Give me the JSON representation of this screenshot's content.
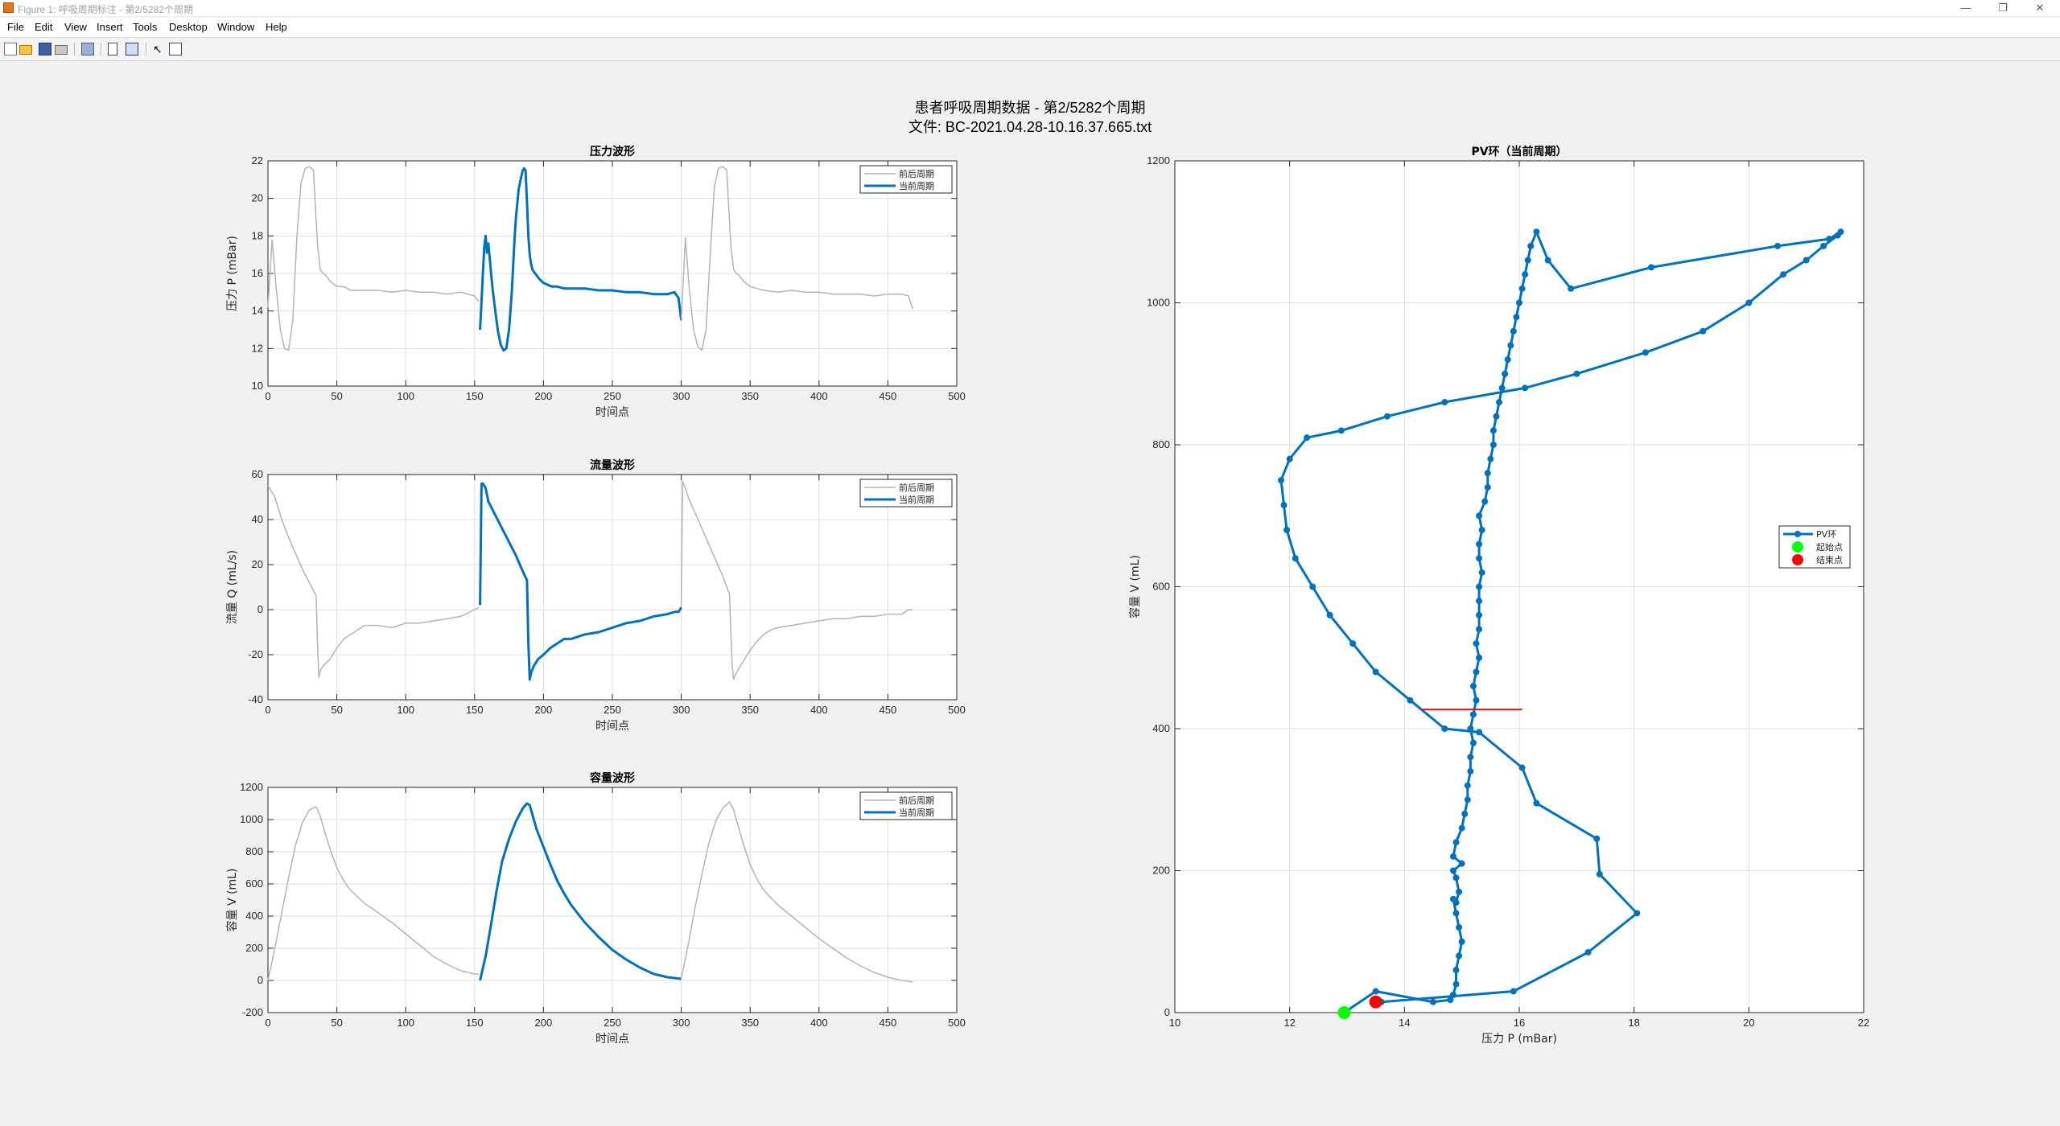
{
  "window": {
    "title": "Figure 1: 呼吸周期标注 - 第2/5282个周期",
    "minimize": "—",
    "restore": "❐",
    "close": "✕"
  },
  "menu": [
    "File",
    "Edit",
    "View",
    "Insert",
    "Tools",
    "Desktop",
    "Window",
    "Help"
  ],
  "toolbar": {
    "icons": [
      "new-figure-icon",
      "open-file-icon",
      "save-icon",
      "print-icon",
      "print-preview-icon",
      "link-plot-icon",
      "property-editor-icon",
      "pointer-icon",
      "plot-browser-icon"
    ]
  },
  "figure": {
    "suptitle_line1": "患者呼吸周期数据 - 第2/5282个周期",
    "suptitle_line2": "文件: BC-2021.04.28-10.16.37.665.txt"
  },
  "colors": {
    "current": "#0072bd",
    "adjacent": "#b3b3b3",
    "crossline": "#e3130a",
    "start_marker": "#00ff00",
    "end_marker": "#ff0000"
  },
  "legend_small": [
    "前后周期",
    "当前周期"
  ],
  "legend_pv": [
    "PV环",
    "起始点",
    "结束点"
  ],
  "chart_data": [
    {
      "type": "line",
      "title": "压力波形",
      "xlabel": "时间点",
      "ylabel": "压力 P (mBar)",
      "xlim": [
        0,
        500
      ],
      "ylim": [
        10,
        22
      ],
      "xticks": [
        0,
        50,
        100,
        150,
        200,
        250,
        300,
        350,
        400,
        450,
        500
      ],
      "yticks": [
        10,
        12,
        14,
        16,
        18,
        20,
        22
      ],
      "grid": true,
      "legend": "top-right",
      "series": [
        {
          "name": "前后周期",
          "role": "adjacent",
          "x": [
            0,
            3,
            6,
            9,
            12,
            15,
            18,
            21,
            24,
            27,
            30,
            33,
            36,
            38,
            40,
            42,
            45,
            50,
            55,
            60,
            70,
            80,
            90,
            100,
            110,
            120,
            130,
            140,
            150,
            153
          ],
          "y": [
            14.2,
            17.8,
            15.2,
            13.0,
            12.0,
            11.9,
            13.5,
            18.0,
            20.8,
            21.6,
            21.7,
            21.5,
            17.5,
            16.2,
            16.0,
            15.9,
            15.6,
            15.3,
            15.3,
            15.1,
            15.1,
            15.1,
            15.0,
            15.1,
            15.0,
            15.0,
            14.9,
            15.0,
            14.8,
            14.5
          ]
        },
        {
          "name": "当前周期",
          "role": "current",
          "x": [
            154,
            155,
            156,
            157,
            158,
            159,
            160,
            161,
            162,
            163,
            165,
            167,
            169,
            171,
            173,
            175,
            177,
            179,
            180,
            182,
            184,
            185,
            186,
            187,
            188,
            189,
            190,
            191,
            192,
            193,
            195,
            197,
            200,
            203,
            206,
            210,
            215,
            220,
            230,
            240,
            250,
            260,
            270,
            280,
            290,
            295,
            298,
            300
          ],
          "y": [
            13.0,
            14.5,
            16.0,
            17.4,
            18.0,
            17.1,
            17.6,
            16.8,
            16.0,
            15.2,
            14.0,
            12.9,
            12.2,
            11.9,
            12.0,
            13.0,
            15.0,
            17.8,
            19.0,
            20.5,
            21.2,
            21.5,
            21.6,
            21.5,
            19.8,
            18.0,
            17.0,
            16.5,
            16.2,
            16.1,
            15.9,
            15.7,
            15.5,
            15.4,
            15.3,
            15.3,
            15.2,
            15.2,
            15.2,
            15.1,
            15.1,
            15.0,
            15.0,
            14.9,
            14.9,
            15.0,
            14.7,
            13.5
          ]
        },
        {
          "name": "前后周期",
          "role": "adjacent",
          "x": [
            300,
            303,
            306,
            309,
            312,
            315,
            318,
            321,
            324,
            327,
            330,
            333,
            336,
            338,
            340,
            342,
            345,
            350,
            355,
            360,
            370,
            380,
            390,
            400,
            410,
            420,
            430,
            440,
            450,
            460,
            465,
            468
          ],
          "y": [
            13.5,
            17.9,
            15.0,
            13.0,
            12.1,
            11.9,
            13.0,
            17.0,
            20.6,
            21.6,
            21.7,
            21.5,
            17.5,
            16.2,
            16.0,
            15.9,
            15.6,
            15.3,
            15.2,
            15.1,
            15.0,
            15.1,
            15.0,
            15.0,
            14.9,
            14.9,
            14.9,
            14.8,
            14.9,
            14.9,
            14.8,
            14.1
          ]
        }
      ]
    },
    {
      "type": "line",
      "title": "流量波形",
      "xlabel": "时间点",
      "ylabel": "流量 Q (mL/s)",
      "xlim": [
        0,
        500
      ],
      "ylim": [
        -40,
        60
      ],
      "xticks": [
        0,
        50,
        100,
        150,
        200,
        250,
        300,
        350,
        400,
        450,
        500
      ],
      "yticks": [
        -40,
        -20,
        0,
        20,
        40,
        60
      ],
      "grid": true,
      "legend": "top-right",
      "series": [
        {
          "name": "前后周期",
          "role": "adjacent",
          "x": [
            0,
            5,
            10,
            15,
            20,
            25,
            30,
            35,
            36,
            37,
            38,
            40,
            45,
            50,
            55,
            60,
            65,
            70,
            75,
            80,
            90,
            100,
            110,
            120,
            130,
            140,
            150,
            153
          ],
          "y": [
            55,
            50,
            40,
            32,
            25,
            18,
            12,
            6,
            -15,
            -30,
            -27,
            -25,
            -22,
            -17,
            -13,
            -11,
            -9,
            -7,
            -7,
            -7,
            -8,
            -6,
            -6,
            -5,
            -4,
            -3,
            0,
            1
          ]
        },
        {
          "name": "当前周期",
          "role": "current",
          "x": [
            154,
            155,
            156,
            158,
            160,
            165,
            170,
            175,
            180,
            185,
            188,
            189,
            190,
            191,
            193,
            196,
            200,
            205,
            210,
            215,
            220,
            230,
            240,
            250,
            260,
            270,
            280,
            290,
            295,
            298,
            300
          ],
          "y": [
            2,
            56,
            56,
            54,
            48,
            42,
            36,
            30,
            24,
            17,
            13,
            -15,
            -31,
            -28,
            -25,
            -22,
            -20,
            -17,
            -15,
            -13,
            -13,
            -11,
            -10,
            -8,
            -6,
            -5,
            -3,
            -2,
            -1,
            -1,
            1
          ]
        },
        {
          "name": "前后周期",
          "role": "adjacent",
          "x": [
            300,
            301,
            303,
            305,
            310,
            315,
            320,
            325,
            330,
            335,
            336,
            337,
            338,
            340,
            345,
            350,
            355,
            360,
            365,
            370,
            380,
            390,
            400,
            410,
            420,
            430,
            440,
            450,
            460,
            465,
            468
          ],
          "y": [
            1,
            57,
            54,
            50,
            43,
            36,
            29,
            22,
            15,
            7,
            -10,
            -25,
            -31,
            -28,
            -23,
            -18,
            -14,
            -11,
            -9,
            -8,
            -7,
            -6,
            -5,
            -4,
            -4,
            -3,
            -3,
            -2,
            -2,
            0,
            0
          ]
        }
      ]
    },
    {
      "type": "line",
      "title": "容量波形",
      "xlabel": "时间点",
      "ylabel": "容量 V (mL)",
      "xlim": [
        0,
        500
      ],
      "ylim": [
        -200,
        1200
      ],
      "xticks": [
        0,
        50,
        100,
        150,
        200,
        250,
        300,
        350,
        400,
        450,
        500
      ],
      "yticks": [
        -200,
        0,
        200,
        400,
        600,
        800,
        1000,
        1200
      ],
      "grid": true,
      "legend": "top-right",
      "series": [
        {
          "name": "前后周期",
          "role": "adjacent",
          "x": [
            0,
            5,
            10,
            15,
            20,
            25,
            30,
            35,
            38,
            40,
            45,
            50,
            55,
            60,
            70,
            80,
            90,
            100,
            110,
            120,
            130,
            140,
            150,
            153
          ],
          "y": [
            0,
            200,
            420,
            640,
            840,
            980,
            1060,
            1080,
            1020,
            960,
            820,
            700,
            620,
            560,
            480,
            420,
            360,
            290,
            220,
            150,
            100,
            60,
            40,
            40
          ]
        },
        {
          "name": "当前周期",
          "role": "current",
          "x": [
            154,
            155,
            158,
            162,
            166,
            170,
            175,
            180,
            185,
            188,
            190,
            192,
            195,
            200,
            205,
            210,
            215,
            220,
            230,
            240,
            250,
            260,
            270,
            280,
            290,
            295,
            298,
            300
          ],
          "y": [
            0,
            40,
            150,
            350,
            560,
            740,
            880,
            990,
            1070,
            1100,
            1090,
            1030,
            940,
            830,
            720,
            620,
            540,
            470,
            360,
            270,
            190,
            130,
            80,
            40,
            20,
            15,
            12,
            10
          ]
        },
        {
          "name": "前后周期",
          "role": "adjacent",
          "x": [
            300,
            305,
            310,
            315,
            320,
            325,
            330,
            335,
            338,
            340,
            345,
            350,
            355,
            360,
            370,
            380,
            390,
            400,
            410,
            420,
            430,
            440,
            450,
            460,
            465,
            468
          ],
          "y": [
            10,
            220,
            450,
            660,
            850,
            990,
            1070,
            1110,
            1060,
            1000,
            850,
            720,
            630,
            560,
            470,
            400,
            330,
            260,
            200,
            140,
            90,
            50,
            20,
            0,
            -5,
            -10
          ]
        }
      ]
    },
    {
      "type": "line",
      "title": "PV环（当前周期）",
      "xlabel": "压力 P (mBar)",
      "ylabel": "容量 V (mL)",
      "xlim": [
        10,
        22
      ],
      "ylim": [
        0,
        1200
      ],
      "xticks": [
        10,
        12,
        14,
        16,
        18,
        20,
        22
      ],
      "yticks": [
        0,
        200,
        400,
        600,
        800,
        1000,
        1200
      ],
      "grid": true,
      "legend": "right",
      "series": [
        {
          "name": "PV环",
          "role": "loop",
          "x": [
            12.95,
            13.5,
            14.5,
            14.8,
            14.85,
            14.9,
            14.9,
            14.95,
            15.0,
            14.95,
            14.9,
            14.85,
            14.9,
            14.95,
            14.9,
            14.85,
            15.0,
            14.85,
            14.9,
            15.0,
            15.05,
            15.1,
            15.1,
            15.15,
            15.15,
            15.2,
            15.15,
            15.2,
            15.25,
            15.2,
            15.25,
            15.3,
            15.25,
            15.3,
            15.3,
            15.3,
            15.3,
            15.35,
            15.3,
            15.3,
            15.35,
            15.3,
            15.4,
            15.45,
            15.45,
            15.5,
            15.55,
            15.55,
            15.6,
            15.65,
            15.7,
            15.75,
            15.8,
            15.85,
            15.9,
            15.95,
            16.0,
            16.05,
            16.1,
            16.15,
            16.2,
            16.3,
            16.5,
            16.9,
            18.3,
            20.5,
            21.4,
            21.6,
            21.55,
            21.3,
            21.0,
            20.6,
            20.0,
            19.2,
            18.2,
            17.0,
            16.1,
            14.7,
            13.7,
            12.9,
            12.3,
            12.0,
            11.85,
            11.9,
            11.95,
            12.1,
            12.4,
            12.7,
            13.1,
            13.5,
            14.1,
            14.7,
            15.3,
            16.05,
            16.3,
            17.35,
            17.4,
            18.05,
            17.2,
            15.9,
            13.6,
            13.5
          ],
          "y": [
            0,
            30,
            15,
            18,
            25,
            40,
            60,
            80,
            100,
            120,
            140,
            160,
            155,
            170,
            190,
            200,
            210,
            220,
            240,
            260,
            280,
            300,
            320,
            340,
            360,
            380,
            400,
            420,
            440,
            460,
            480,
            500,
            520,
            540,
            560,
            580,
            600,
            620,
            640,
            660,
            680,
            700,
            720,
            740,
            760,
            780,
            800,
            820,
            840,
            860,
            880,
            900,
            920,
            940,
            960,
            980,
            1000,
            1020,
            1040,
            1060,
            1080,
            1100,
            1060,
            1020,
            1050,
            1080,
            1090,
            1100,
            1095,
            1080,
            1060,
            1040,
            1000,
            960,
            930,
            900,
            880,
            860,
            840,
            820,
            810,
            780,
            750,
            715,
            680,
            640,
            600,
            560,
            520,
            480,
            440,
            400,
            395,
            345,
            295,
            245,
            195,
            140,
            85,
            30,
            15,
            15
          ]
        },
        {
          "name": "起始点",
          "role": "start",
          "x": [
            12.95
          ],
          "y": [
            0
          ]
        },
        {
          "name": "结束点",
          "role": "end",
          "x": [
            13.5
          ],
          "y": [
            15
          ]
        }
      ],
      "crossline": {
        "x": [
          14.3,
          16.05
        ],
        "y": [
          427,
          427
        ]
      }
    }
  ]
}
